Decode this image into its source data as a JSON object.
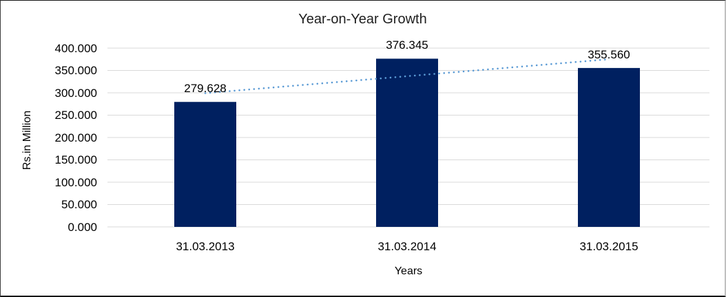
{
  "chart_data": {
    "type": "bar",
    "title": "Year-on-Year Growth",
    "xlabel": "Years",
    "ylabel": "Rs.in Million",
    "categories": [
      "31.03.2013",
      "31.03.2014",
      "31.03.2015"
    ],
    "values": [
      279.628,
      376.345,
      355.56
    ],
    "data_labels": [
      "279.628",
      "376.345",
      "355.560"
    ],
    "ylim": [
      0,
      400
    ],
    "y_tick_step": 50,
    "y_tick_labels": [
      "0.000",
      "50.000",
      "100.000",
      "150.000",
      "200.000",
      "250.000",
      "300.000",
      "350.000",
      "400.000"
    ],
    "grid": true,
    "legend": "none",
    "bar_color": "#002060",
    "gridline_color": "#d9d9d9",
    "trendline": {
      "type": "linear",
      "style": "dotted",
      "color": "#5b9bd5"
    }
  }
}
